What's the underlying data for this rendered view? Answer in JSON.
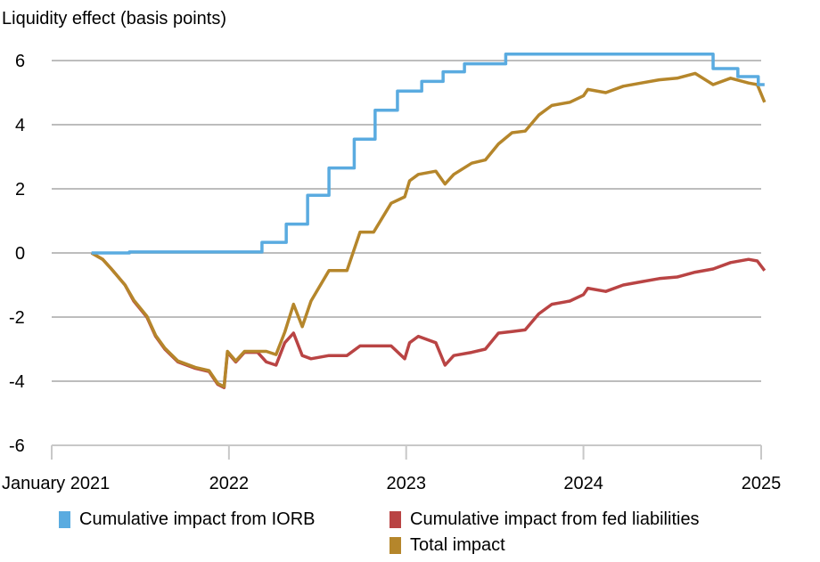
{
  "chart_data": {
    "type": "line",
    "title": "Liquidity effect (basis points)",
    "xlabel": "",
    "ylabel": "",
    "ylim": [
      -6,
      6
    ],
    "yticks": [
      "6",
      "4",
      "2",
      "0",
      "-2",
      "-4",
      "-6"
    ],
    "ytick_values": [
      6,
      4,
      2,
      0,
      -2,
      -4,
      -6
    ],
    "xlim": [
      "2021-01-01",
      "2025-01-01"
    ],
    "xticks": [
      {
        "date": "2021-01-01",
        "label": "January 2021"
      },
      {
        "date": "2022-01-01",
        "label": "2022"
      },
      {
        "date": "2023-01-01",
        "label": "2023"
      },
      {
        "date": "2024-01-01",
        "label": "2024"
      },
      {
        "date": "2025-01-01",
        "label": "2025"
      }
    ],
    "grid": "horizontal",
    "legend_placement": "bottom",
    "series": [
      {
        "name": "Cumulative impact from IORB",
        "color": "#5aabe0",
        "step": true,
        "points": [
          [
            "2021-03-24",
            0
          ],
          [
            "2021-06-10",
            0.03
          ],
          [
            "2022-03-10",
            0.33
          ],
          [
            "2022-04-29",
            0.9
          ],
          [
            "2022-06-12",
            1.8
          ],
          [
            "2022-07-26",
            2.65
          ],
          [
            "2022-09-16",
            3.55
          ],
          [
            "2022-10-29",
            4.45
          ],
          [
            "2022-12-14",
            5.05
          ],
          [
            "2023-02-02",
            5.35
          ],
          [
            "2023-03-18",
            5.65
          ],
          [
            "2023-05-01",
            5.9
          ],
          [
            "2023-07-25",
            6.2
          ],
          [
            "2024-09-24",
            5.75
          ],
          [
            "2024-11-14",
            5.5
          ],
          [
            "2024-12-26",
            5.25
          ],
          [
            "2025-01-08",
            5.25
          ]
        ]
      },
      {
        "name": "Cumulative impact from fed liabilities",
        "color": "#b94444",
        "points": [
          [
            "2021-03-24",
            0
          ],
          [
            "2021-04-16",
            -0.2
          ],
          [
            "2021-05-04",
            -0.5
          ],
          [
            "2021-06-01",
            -1.0
          ],
          [
            "2021-06-19",
            -1.5
          ],
          [
            "2021-07-16",
            -2.0
          ],
          [
            "2021-08-03",
            -2.6
          ],
          [
            "2021-08-22",
            -3.0
          ],
          [
            "2021-09-18",
            -3.4
          ],
          [
            "2021-10-06",
            -3.5
          ],
          [
            "2021-10-24",
            -3.6
          ],
          [
            "2021-11-21",
            -3.7
          ],
          [
            "2021-12-09",
            -4.1
          ],
          [
            "2021-12-22",
            -4.2
          ],
          [
            "2021-12-29",
            -3.1
          ],
          [
            "2022-01-15",
            -3.4
          ],
          [
            "2022-02-02",
            -3.1
          ],
          [
            "2022-03-01",
            -3.1
          ],
          [
            "2022-03-19",
            -3.4
          ],
          [
            "2022-04-08",
            -3.5
          ],
          [
            "2022-04-26",
            -2.8
          ],
          [
            "2022-05-14",
            -2.5
          ],
          [
            "2022-06-01",
            -3.2
          ],
          [
            "2022-06-19",
            -3.3
          ],
          [
            "2022-07-26",
            -3.2
          ],
          [
            "2022-09-01",
            -3.2
          ],
          [
            "2022-09-28",
            -2.9
          ],
          [
            "2022-10-26",
            -2.9
          ],
          [
            "2022-12-01",
            -2.9
          ],
          [
            "2022-12-29",
            -3.3
          ],
          [
            "2023-01-08",
            -2.8
          ],
          [
            "2023-01-26",
            -2.6
          ],
          [
            "2023-03-03",
            -2.8
          ],
          [
            "2023-03-22",
            -3.5
          ],
          [
            "2023-04-09",
            -3.2
          ],
          [
            "2023-05-16",
            -3.1
          ],
          [
            "2023-06-13",
            -3.0
          ],
          [
            "2023-07-10",
            -2.5
          ],
          [
            "2023-08-07",
            -2.45
          ],
          [
            "2023-09-03",
            -2.4
          ],
          [
            "2023-10-01",
            -1.9
          ],
          [
            "2023-10-28",
            -1.6
          ],
          [
            "2023-12-04",
            -1.5
          ],
          [
            "2024-01-01",
            -1.3
          ],
          [
            "2024-01-10",
            -1.1
          ],
          [
            "2024-02-16",
            -1.2
          ],
          [
            "2024-03-23",
            -1.0
          ],
          [
            "2024-04-29",
            -0.9
          ],
          [
            "2024-06-05",
            -0.8
          ],
          [
            "2024-07-12",
            -0.75
          ],
          [
            "2024-08-18",
            -0.6
          ],
          [
            "2024-09-24",
            -0.5
          ],
          [
            "2024-10-30",
            -0.3
          ],
          [
            "2024-12-06",
            -0.2
          ],
          [
            "2024-12-24",
            -0.25
          ],
          [
            "2025-01-08",
            -0.55
          ]
        ]
      },
      {
        "name": "Total impact",
        "color": "#b5862b",
        "points": [
          [
            "2021-03-24",
            0
          ],
          [
            "2021-04-16",
            -0.2
          ],
          [
            "2021-05-04",
            -0.5
          ],
          [
            "2021-06-01",
            -1.0
          ],
          [
            "2021-06-19",
            -1.47
          ],
          [
            "2021-07-16",
            -1.97
          ],
          [
            "2021-08-03",
            -2.57
          ],
          [
            "2021-08-22",
            -2.97
          ],
          [
            "2021-09-18",
            -3.37
          ],
          [
            "2021-10-06",
            -3.47
          ],
          [
            "2021-10-24",
            -3.57
          ],
          [
            "2021-11-21",
            -3.67
          ],
          [
            "2021-12-09",
            -4.07
          ],
          [
            "2021-12-22",
            -4.17
          ],
          [
            "2021-12-29",
            -3.07
          ],
          [
            "2022-01-15",
            -3.37
          ],
          [
            "2022-02-02",
            -3.07
          ],
          [
            "2022-03-01",
            -3.07
          ],
          [
            "2022-03-19",
            -3.07
          ],
          [
            "2022-04-08",
            -3.17
          ],
          [
            "2022-04-26",
            -2.47
          ],
          [
            "2022-05-14",
            -1.6
          ],
          [
            "2022-06-01",
            -2.3
          ],
          [
            "2022-06-19",
            -1.5
          ],
          [
            "2022-07-26",
            -0.55
          ],
          [
            "2022-09-01",
            -0.55
          ],
          [
            "2022-09-28",
            0.65
          ],
          [
            "2022-10-26",
            0.65
          ],
          [
            "2022-12-01",
            1.55
          ],
          [
            "2022-12-29",
            1.75
          ],
          [
            "2023-01-08",
            2.25
          ],
          [
            "2023-01-26",
            2.45
          ],
          [
            "2023-03-03",
            2.55
          ],
          [
            "2023-03-22",
            2.15
          ],
          [
            "2023-04-09",
            2.45
          ],
          [
            "2023-05-16",
            2.8
          ],
          [
            "2023-06-13",
            2.9
          ],
          [
            "2023-07-10",
            3.4
          ],
          [
            "2023-08-07",
            3.75
          ],
          [
            "2023-09-03",
            3.8
          ],
          [
            "2023-10-01",
            4.3
          ],
          [
            "2023-10-28",
            4.6
          ],
          [
            "2023-12-04",
            4.7
          ],
          [
            "2024-01-01",
            4.9
          ],
          [
            "2024-01-10",
            5.1
          ],
          [
            "2024-02-16",
            5.0
          ],
          [
            "2024-03-23",
            5.2
          ],
          [
            "2024-04-29",
            5.3
          ],
          [
            "2024-06-05",
            5.4
          ],
          [
            "2024-07-12",
            5.45
          ],
          [
            "2024-08-18",
            5.6
          ],
          [
            "2024-09-24",
            5.25
          ],
          [
            "2024-10-30",
            5.45
          ],
          [
            "2024-12-06",
            5.3
          ],
          [
            "2024-12-24",
            5.25
          ],
          [
            "2025-01-08",
            4.7
          ]
        ]
      }
    ]
  }
}
